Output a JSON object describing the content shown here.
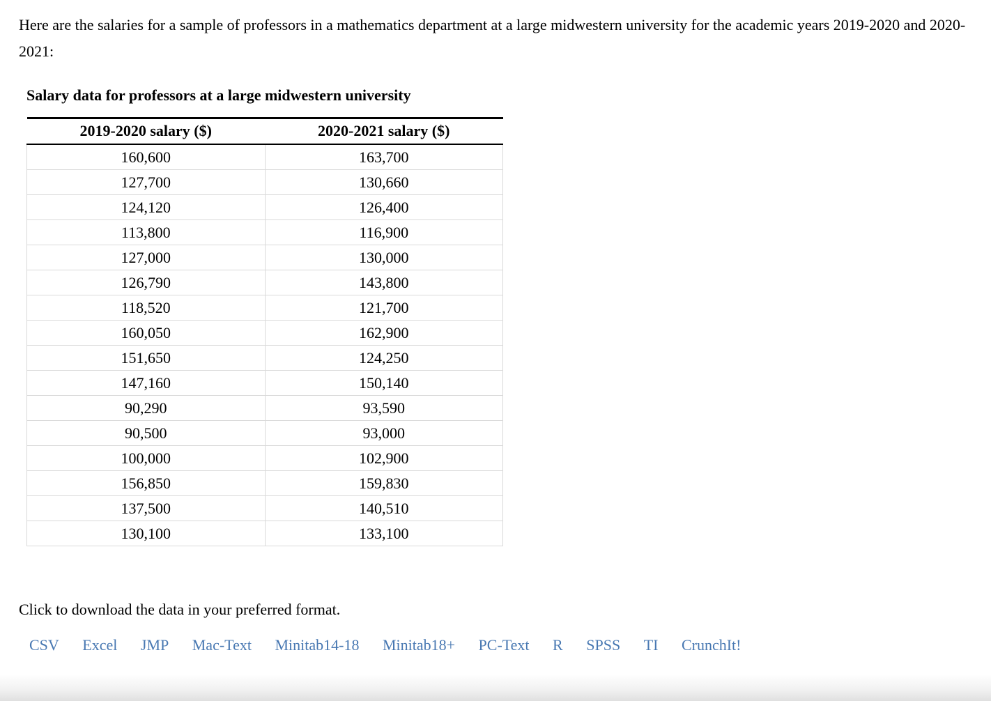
{
  "page": {
    "intro": "Here are the salaries for a sample of professors in a mathematics department at a large midwestern university for the academic years 2019-2020 and 2020-2021:",
    "download_prompt": "Click to download the data in your preferred format."
  },
  "table": {
    "title": "Salary data for professors at a large midwestern university",
    "columns": [
      "2019-2020 salary ($)",
      "2020-2021 salary ($)"
    ],
    "rows": [
      [
        "160,600",
        "163,700"
      ],
      [
        "127,700",
        "130,660"
      ],
      [
        "124,120",
        "126,400"
      ],
      [
        "113,800",
        "116,900"
      ],
      [
        "127,000",
        "130,000"
      ],
      [
        "126,790",
        "143,800"
      ],
      [
        "118,520",
        "121,700"
      ],
      [
        "160,050",
        "162,900"
      ],
      [
        "151,650",
        "124,250"
      ],
      [
        "147,160",
        "150,140"
      ],
      [
        "90,290",
        "93,590"
      ],
      [
        "90,500",
        "93,000"
      ],
      [
        "100,000",
        "102,900"
      ],
      [
        "156,850",
        "159,830"
      ],
      [
        "137,500",
        "140,510"
      ],
      [
        "130,100",
        "133,100"
      ]
    ]
  },
  "download_links": {
    "csv": "CSV",
    "excel": "Excel",
    "jmp": "JMP",
    "mac_text": "Mac-Text",
    "minitab14_18": "Minitab14-18",
    "minitab18_plus": "Minitab18+",
    "pc_text": "PC-Text",
    "r": "R",
    "spss": "SPSS",
    "ti": "TI",
    "crunchit": "CrunchIt!"
  },
  "colors": {
    "link_blue": "#4878b2",
    "table_border_gray": "#d9d9d9",
    "rule_black": "#000000",
    "background": "#ffffff"
  }
}
